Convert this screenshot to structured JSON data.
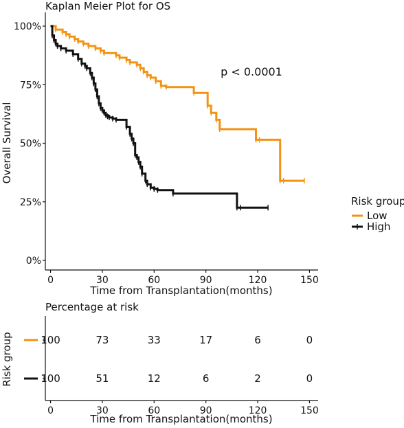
{
  "chart_data": [
    {
      "type": "line",
      "subtype": "kaplan-meier-step",
      "title": "Kaplan Meier Plot for OS",
      "xlabel": "Time from Transplantation(months)",
      "ylabel": "Overall Survival",
      "xlim": [
        -3,
        155
      ],
      "ylim": [
        0,
        1
      ],
      "xticks": [
        "0",
        "30",
        "60",
        "90",
        "120",
        "150"
      ],
      "yticks": [
        "0%",
        "25%",
        "50%",
        "75%",
        "100%"
      ],
      "annotation": "p < 0.0001",
      "grid": false,
      "legend": {
        "title": "Risk group",
        "placement": "right"
      },
      "series": [
        {
          "name": "Low",
          "color": "#f39314",
          "x": [
            0,
            3,
            7,
            9,
            11,
            14,
            16,
            19,
            22,
            26,
            29,
            31,
            38,
            40,
            44,
            46,
            50,
            52,
            54,
            56,
            58,
            61,
            64,
            67,
            83,
            91,
            93,
            96,
            98,
            119,
            121,
            133,
            135,
            147
          ],
          "y": [
            1.0,
            0.985,
            0.975,
            0.965,
            0.955,
            0.945,
            0.935,
            0.925,
            0.915,
            0.905,
            0.895,
            0.885,
            0.875,
            0.865,
            0.855,
            0.845,
            0.835,
            0.82,
            0.805,
            0.79,
            0.78,
            0.765,
            0.745,
            0.74,
            0.715,
            0.66,
            0.63,
            0.6,
            0.56,
            0.515,
            0.515,
            0.34,
            0.34,
            0.34
          ]
        },
        {
          "name": "High",
          "color": "#111111",
          "x": [
            0,
            1,
            2,
            3,
            4,
            6,
            9,
            13,
            16,
            18,
            20,
            21,
            23,
            24,
            25,
            26,
            27,
            28,
            29,
            30,
            31,
            32,
            33,
            34,
            36,
            38,
            44,
            46,
            47,
            48,
            49,
            50,
            51,
            52,
            53,
            55,
            56,
            58,
            60,
            62,
            71,
            108,
            110,
            126
          ],
          "y": [
            1.0,
            0.96,
            0.94,
            0.925,
            0.915,
            0.905,
            0.895,
            0.88,
            0.86,
            0.84,
            0.83,
            0.82,
            0.8,
            0.78,
            0.755,
            0.73,
            0.7,
            0.67,
            0.65,
            0.64,
            0.63,
            0.62,
            0.615,
            0.61,
            0.605,
            0.6,
            0.57,
            0.54,
            0.52,
            0.5,
            0.45,
            0.44,
            0.42,
            0.4,
            0.37,
            0.34,
            0.325,
            0.31,
            0.305,
            0.3,
            0.285,
            0.225,
            0.225,
            0.225
          ]
        }
      ]
    },
    {
      "type": "table",
      "title": "Percentage at risk",
      "xlabel": "Time from Transplantation(months)",
      "ylabel": "Risk group",
      "xticks": [
        "0",
        "30",
        "60",
        "90",
        "120",
        "150"
      ],
      "columns": [
        0,
        30,
        60,
        90,
        120,
        150
      ],
      "rows": [
        {
          "name": "Low",
          "color": "#f39314",
          "values": [
            "100",
            "73",
            "33",
            "17",
            "6",
            "0"
          ]
        },
        {
          "name": "High",
          "color": "#111111",
          "values": [
            "100",
            "51",
            "12",
            "6",
            "2",
            "0"
          ]
        }
      ]
    }
  ]
}
